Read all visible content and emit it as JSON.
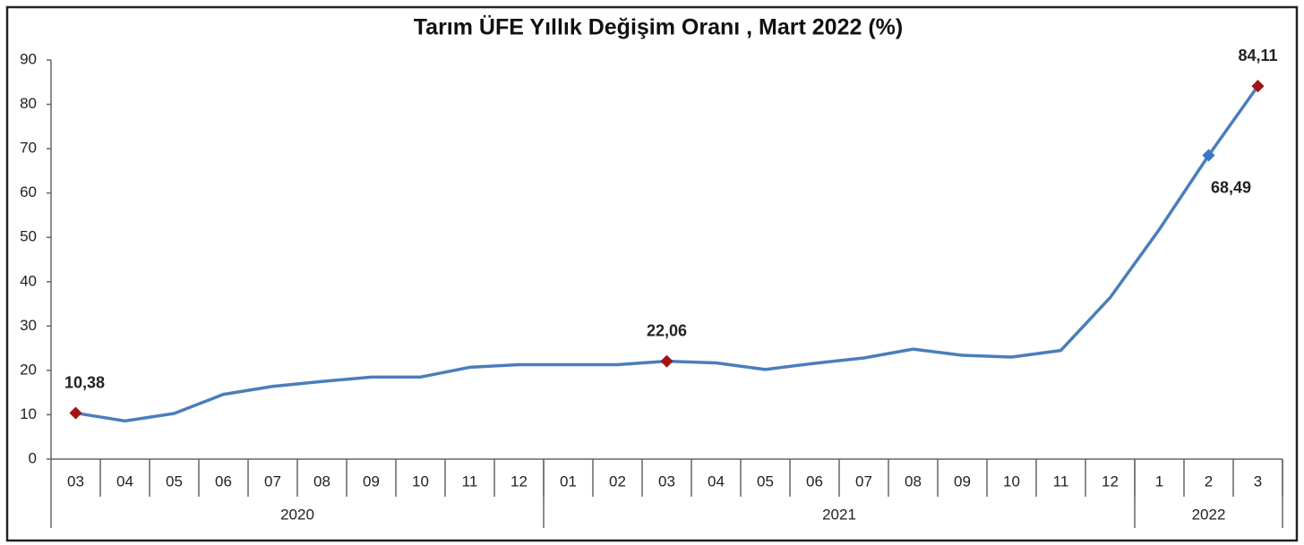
{
  "chart_data": {
    "type": "line",
    "title": "Tarım ÜFE Yıllık Değişim Oranı , Mart 2022 (%)",
    "categories": [
      "03",
      "04",
      "05",
      "06",
      "07",
      "08",
      "09",
      "10",
      "11",
      "12",
      "01",
      "02",
      "03",
      "04",
      "05",
      "06",
      "07",
      "08",
      "09",
      "10",
      "11",
      "12",
      "1",
      "2",
      "3"
    ],
    "group_labels": [
      "2020",
      "2021",
      "2022"
    ],
    "group_sizes": [
      10,
      12,
      3
    ],
    "series": [
      {
        "name": "Tarım ÜFE",
        "color": "#4a7ebb",
        "values": [
          10.38,
          8.6,
          10.3,
          14.6,
          16.4,
          17.5,
          18.5,
          18.5,
          20.7,
          21.3,
          21.3,
          21.3,
          22.06,
          21.7,
          20.2,
          21.6,
          22.8,
          24.8,
          23.4,
          23.0,
          24.5,
          36.4,
          51.8,
          68.49,
          84.11
        ],
        "value_labels": [
          "10,38",
          null,
          null,
          null,
          null,
          null,
          null,
          null,
          null,
          null,
          null,
          null,
          "22,06",
          null,
          null,
          null,
          null,
          null,
          null,
          null,
          null,
          null,
          null,
          "68,49",
          "84,11"
        ],
        "marker_colors": [
          "#a31515",
          null,
          null,
          null,
          null,
          null,
          null,
          null,
          null,
          null,
          null,
          null,
          "#a31515",
          null,
          null,
          null,
          null,
          null,
          null,
          null,
          null,
          null,
          null,
          "#3a78c4",
          "#a31515"
        ]
      }
    ],
    "ylim": [
      0,
      90
    ],
    "yticks": [
      0,
      10,
      20,
      30,
      40,
      50,
      60,
      70,
      80,
      90
    ],
    "grid": false
  }
}
